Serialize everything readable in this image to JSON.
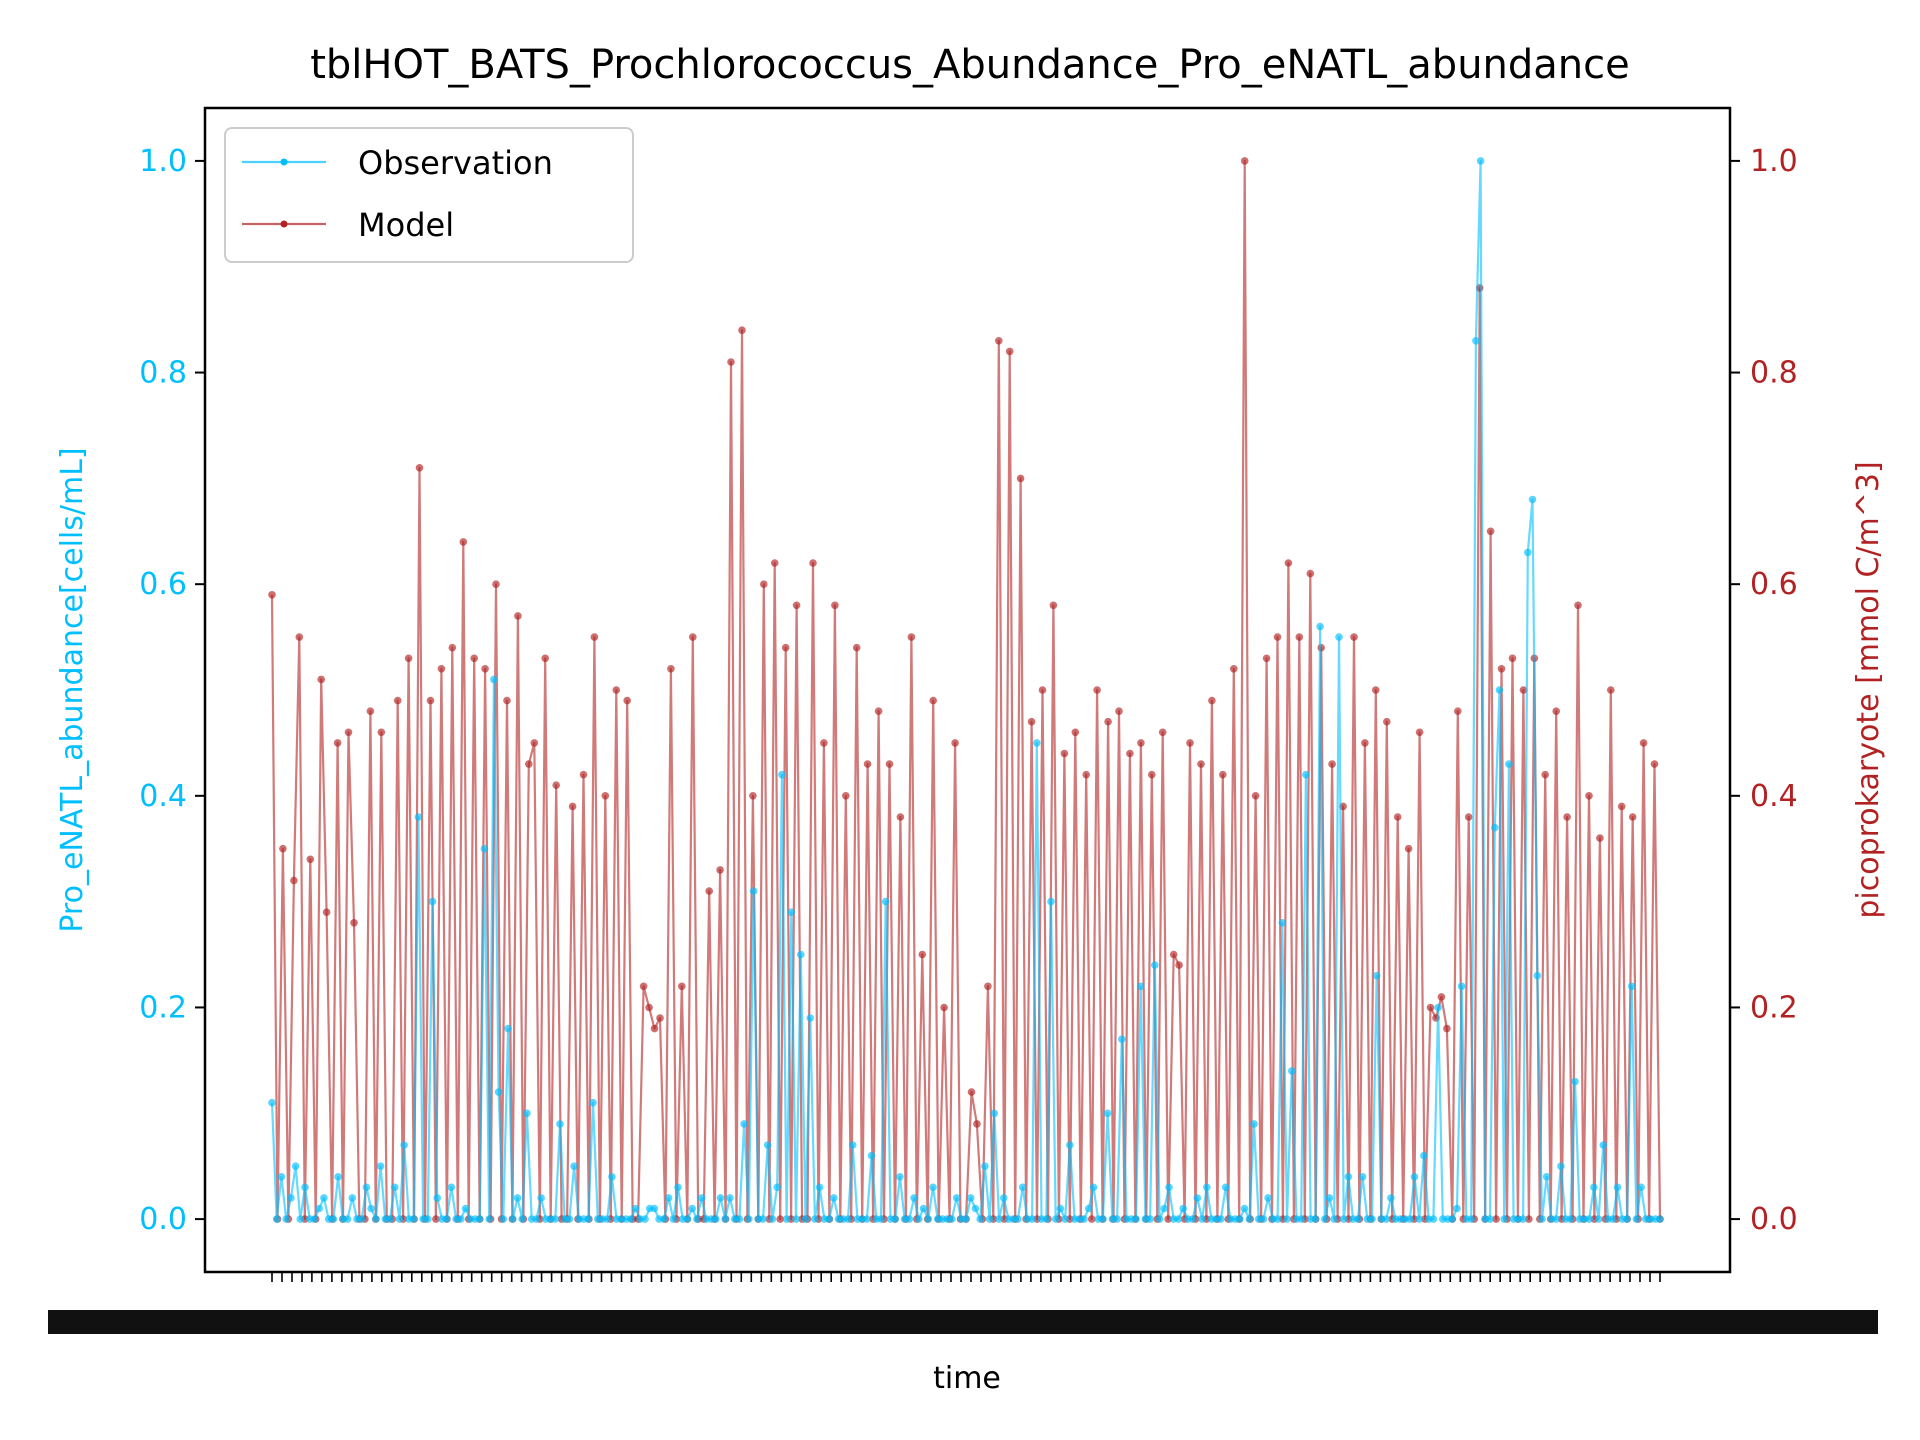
{
  "chart_data": {
    "type": "line",
    "title": "tblHOT_BATS_Prochlorococcus_Abundance_Pro_eNATL_abundance",
    "xlabel": "time",
    "ylabel_left": "Pro_eNATL_abundance[cells/mL]",
    "ylabel_right": "picoprokaryote [mmol C/m^3]",
    "ylim_left": [
      -0.05,
      1.05
    ],
    "ylim_right": [
      -0.05,
      1.05
    ],
    "yticks_left": [
      "0.0",
      "0.2",
      "0.4",
      "0.6",
      "0.8",
      "1.0"
    ],
    "yticks_right": [
      "0.0",
      "0.2",
      "0.4",
      "0.6",
      "0.8",
      "1.0"
    ],
    "x_tick_labels_note": "dense overlapping date labels, illegible",
    "legend_position": "upper-left",
    "series": [
      {
        "name": "Observation",
        "color": "#00bfff",
        "axis": "left",
        "values": [
          0.11,
          0.0,
          0.04,
          0.0,
          0.02,
          0.05,
          0.0,
          0.03,
          0.0,
          0.0,
          0.01,
          0.02,
          0.0,
          0.0,
          0.04,
          0.0,
          0.0,
          0.02,
          0.0,
          0.0,
          0.03,
          0.01,
          0.0,
          0.05,
          0.0,
          0.0,
          0.03,
          0.0,
          0.07,
          0.0,
          0.0,
          0.38,
          0.0,
          0.0,
          0.3,
          0.02,
          0.0,
          0.0,
          0.03,
          0.0,
          0.0,
          0.01,
          0.0,
          0.0,
          0.0,
          0.35,
          0.0,
          0.51,
          0.12,
          0.0,
          0.18,
          0.0,
          0.02,
          0.0,
          0.1,
          0.0,
          0.0,
          0.02,
          0.0,
          0.0,
          0.0,
          0.09,
          0.0,
          0.0,
          0.05,
          0.0,
          0.0,
          0.0,
          0.11,
          0.0,
          0.0,
          0.0,
          0.04,
          0.0,
          0.0,
          0.0,
          0.0,
          0.01,
          0.0,
          0.0,
          0.01,
          0.01,
          0.0,
          0.0,
          0.02,
          0.0,
          0.03,
          0.0,
          0.0,
          0.01,
          0.0,
          0.02,
          0.0,
          0.0,
          0.0,
          0.02,
          0.0,
          0.02,
          0.0,
          0.0,
          0.09,
          0.0,
          0.31,
          0.0,
          0.0,
          0.07,
          0.0,
          0.03,
          0.42,
          0.0,
          0.29,
          0.0,
          0.25,
          0.0,
          0.19,
          0.0,
          0.03,
          0.0,
          0.0,
          0.02,
          0.0,
          0.0,
          0.0,
          0.07,
          0.0,
          0.0,
          0.0,
          0.06,
          0.0,
          0.0,
          0.3,
          0.0,
          0.0,
          0.04,
          0.0,
          0.0,
          0.02,
          0.0,
          0.01,
          0.0,
          0.03,
          0.0,
          0.0,
          0.0,
          0.0,
          0.02,
          0.0,
          0.0,
          0.02,
          0.01,
          0.0,
          0.05,
          0.0,
          0.1,
          0.0,
          0.02,
          0.0,
          0.0,
          0.0,
          0.03,
          0.0,
          0.0,
          0.45,
          0.0,
          0.0,
          0.3,
          0.0,
          0.01,
          0.0,
          0.07,
          0.0,
          0.0,
          0.0,
          0.01,
          0.03,
          0.0,
          0.0,
          0.1,
          0.0,
          0.0,
          0.17,
          0.0,
          0.0,
          0.0,
          0.22,
          0.0,
          0.0,
          0.24,
          0.0,
          0.01,
          0.03,
          0.0,
          0.0,
          0.01,
          0.0,
          0.0,
          0.02,
          0.0,
          0.03,
          0.0,
          0.0,
          0.0,
          0.03,
          0.0,
          0.0,
          0.0,
          0.01,
          0.0,
          0.09,
          0.0,
          0.0,
          0.02,
          0.0,
          0.0,
          0.28,
          0.0,
          0.14,
          0.0,
          0.0,
          0.42,
          0.0,
          0.0,
          0.56,
          0.0,
          0.02,
          0.0,
          0.55,
          0.0,
          0.04,
          0.0,
          0.0,
          0.04,
          0.0,
          0.0,
          0.23,
          0.0,
          0.0,
          0.02,
          0.0,
          0.0,
          0.0,
          0.0,
          0.04,
          0.0,
          0.06,
          0.0,
          0.0,
          0.2,
          0.0,
          0.0,
          0.0,
          0.01,
          0.22,
          0.0,
          0.0,
          0.83,
          1.0,
          0.0,
          0.0,
          0.37,
          0.5,
          0.0,
          0.43,
          0.0,
          0.0,
          0.0,
          0.63,
          0.68,
          0.23,
          0.0,
          0.04,
          0.0,
          0.0,
          0.05,
          0.0,
          0.0,
          0.13,
          0.0,
          0.0,
          0.0,
          0.03,
          0.0,
          0.07,
          0.0,
          0.0,
          0.03,
          0.0,
          0.0,
          0.22,
          0.0,
          0.03,
          0.0,
          0.0,
          0.0,
          0.0
        ]
      },
      {
        "name": "Model",
        "color": "#b22222",
        "axis": "right",
        "values": [
          0.59,
          0.0,
          0.35,
          0.0,
          0.32,
          0.55,
          0.0,
          0.34,
          0.0,
          0.51,
          0.29,
          0.0,
          0.45,
          0.0,
          0.46,
          0.28,
          0.0,
          0.0,
          0.48,
          0.0,
          0.46,
          0.0,
          0.0,
          0.49,
          0.0,
          0.53,
          0.0,
          0.71,
          0.0,
          0.49,
          0.0,
          0.52,
          0.0,
          0.54,
          0.0,
          0.64,
          0.0,
          0.53,
          0.0,
          0.52,
          0.0,
          0.6,
          0.0,
          0.49,
          0.0,
          0.57,
          0.0,
          0.43,
          0.45,
          0.0,
          0.53,
          0.0,
          0.41,
          0.0,
          0.0,
          0.39,
          0.0,
          0.42,
          0.0,
          0.55,
          0.0,
          0.4,
          0.0,
          0.5,
          0.0,
          0.49,
          0.0,
          0.0,
          0.22,
          0.2,
          0.18,
          0.19,
          0.0,
          0.52,
          0.0,
          0.22,
          0.0,
          0.55,
          0.0,
          0.0,
          0.31,
          0.0,
          0.33,
          0.0,
          0.81,
          0.0,
          0.84,
          0.0,
          0.4,
          0.0,
          0.6,
          0.0,
          0.62,
          0.0,
          0.54,
          0.0,
          0.58,
          0.0,
          0.0,
          0.62,
          0.0,
          0.45,
          0.0,
          0.58,
          0.0,
          0.4,
          0.0,
          0.54,
          0.0,
          0.43,
          0.0,
          0.48,
          0.0,
          0.43,
          0.0,
          0.38,
          0.0,
          0.55,
          0.0,
          0.25,
          0.0,
          0.49,
          0.0,
          0.2,
          0.0,
          0.45,
          0.0,
          0.0,
          0.12,
          0.09,
          0.0,
          0.22,
          0.0,
          0.83,
          0.0,
          0.82,
          0.0,
          0.7,
          0.0,
          0.47,
          0.0,
          0.5,
          0.0,
          0.58,
          0.0,
          0.44,
          0.0,
          0.46,
          0.0,
          0.42,
          0.0,
          0.5,
          0.0,
          0.47,
          0.0,
          0.48,
          0.0,
          0.44,
          0.0,
          0.45,
          0.0,
          0.42,
          0.0,
          0.46,
          0.0,
          0.25,
          0.24,
          0.0,
          0.45,
          0.0,
          0.43,
          0.0,
          0.49,
          0.0,
          0.42,
          0.0,
          0.52,
          0.0,
          1.0,
          0.0,
          0.4,
          0.0,
          0.53,
          0.0,
          0.55,
          0.0,
          0.62,
          0.0,
          0.55,
          0.0,
          0.61,
          0.0,
          0.54,
          0.0,
          0.43,
          0.0,
          0.39,
          0.0,
          0.55,
          0.0,
          0.45,
          0.0,
          0.5,
          0.0,
          0.47,
          0.0,
          0.38,
          0.0,
          0.35,
          0.0,
          0.46,
          0.0,
          0.2,
          0.19,
          0.21,
          0.18,
          0.0,
          0.48,
          0.0,
          0.38,
          0.0,
          0.88,
          0.0,
          0.65,
          0.0,
          0.52,
          0.0,
          0.53,
          0.0,
          0.5,
          0.0,
          0.53,
          0.0,
          0.42,
          0.0,
          0.48,
          0.0,
          0.38,
          0.0,
          0.58,
          0.0,
          0.4,
          0.0,
          0.36,
          0.0,
          0.5,
          0.0,
          0.39,
          0.0,
          0.38,
          0.0,
          0.45,
          0.0,
          0.43,
          0.0
        ]
      }
    ]
  }
}
